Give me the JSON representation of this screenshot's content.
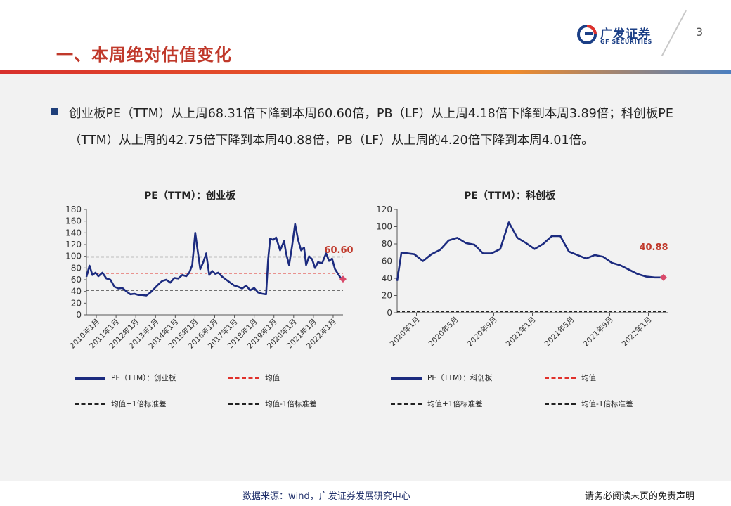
{
  "header": {
    "title": "一、本周绝对估值变化",
    "logo_cn": "广发证券",
    "logo_en": "GF SECURITIES",
    "page_number": "3"
  },
  "bullet": {
    "text": "创业板PE（TTM）从上周68.31倍下降到本周60.60倍，PB（LF）从上周4.18倍下降到本周3.89倍；科创板PE（TTM）从上周的42.75倍下降到本周40.88倍，PB（LF）从上周的4.20倍下降到本周4.01倍。"
  },
  "colors": {
    "line": "#1c2b7f",
    "mean": "#e0312b",
    "std": "#222222",
    "marker": "#d94a6a",
    "accent_red": "#c0392b"
  },
  "chart_data": [
    {
      "type": "line",
      "title": "PE（TTM）：创业板",
      "ylim": [
        0,
        180
      ],
      "yticks": [
        0,
        20,
        40,
        60,
        80,
        100,
        120,
        140,
        160,
        180
      ],
      "xticklabels": [
        "2010年1月",
        "2011年1月",
        "2012年1月",
        "2013年1月",
        "2014年1月",
        "2015年1月",
        "2016年1月",
        "2017年1月",
        "2018年1月",
        "2019年1月",
        "2020年1月",
        "2021年1月",
        "2022年1月"
      ],
      "x_start": 2010.0,
      "x_end": 2022.85,
      "mean": 71,
      "mean_plus_std": 99,
      "mean_minus_std": 42,
      "last_label": "60.60",
      "series": [
        {
          "name": "PE（TTM）：创业板",
          "x": [
            2010.0,
            2010.15,
            2010.3,
            2010.45,
            2010.6,
            2010.8,
            2011.0,
            2011.2,
            2011.4,
            2011.6,
            2011.8,
            2012.0,
            2012.2,
            2012.4,
            2012.6,
            2012.8,
            2013.0,
            2013.2,
            2013.4,
            2013.6,
            2013.8,
            2014.0,
            2014.2,
            2014.4,
            2014.6,
            2014.8,
            2015.0,
            2015.15,
            2015.3,
            2015.45,
            2015.55,
            2015.7,
            2015.85,
            2016.0,
            2016.15,
            2016.3,
            2016.45,
            2016.6,
            2016.8,
            2017.0,
            2017.2,
            2017.4,
            2017.6,
            2017.8,
            2018.0,
            2018.2,
            2018.4,
            2018.6,
            2018.8,
            2019.0,
            2019.1,
            2019.2,
            2019.35,
            2019.5,
            2019.7,
            2019.9,
            2020.0,
            2020.15,
            2020.3,
            2020.45,
            2020.6,
            2020.75,
            2020.9,
            2021.0,
            2021.15,
            2021.3,
            2021.45,
            2021.6,
            2021.8,
            2022.0,
            2022.15,
            2022.3,
            2022.45,
            2022.6,
            2022.75,
            2022.85
          ],
          "y": [
            65,
            84,
            68,
            72,
            66,
            72,
            62,
            60,
            48,
            45,
            46,
            40,
            35,
            36,
            34,
            34,
            33,
            38,
            45,
            52,
            58,
            60,
            55,
            63,
            62,
            68,
            66,
            72,
            85,
            140,
            115,
            78,
            90,
            105,
            68,
            75,
            70,
            72,
            65,
            60,
            55,
            50,
            48,
            45,
            50,
            42,
            46,
            38,
            36,
            35,
            95,
            130,
            128,
            132,
            110,
            126,
            105,
            85,
            118,
            155,
            128,
            110,
            115,
            85,
            100,
            95,
            80,
            90,
            88,
            105,
            92,
            96,
            78,
            70,
            62,
            61
          ]
        }
      ]
    },
    {
      "type": "line",
      "title": "PE（TTM）：科创板",
      "ylim": [
        0,
        120
      ],
      "yticks": [
        0,
        20,
        40,
        60,
        80,
        100,
        120
      ],
      "xticklabels": [
        "2020年1月",
        "2020年5月",
        "2020年9月",
        "2021年1月",
        "2021年5月",
        "2021年9月",
        "2022年1月"
      ],
      "x_start": 0,
      "x_end": 31.5,
      "last_label": "40.88",
      "series": [
        {
          "name": "PE（TTM）：科创板",
          "x": [
            0,
            0.5,
            2,
            3,
            4,
            5,
            6,
            7,
            8,
            9,
            10,
            11,
            12,
            13,
            14,
            15,
            16,
            17,
            18,
            19,
            20,
            21,
            22,
            23,
            24,
            25,
            26,
            27,
            28,
            29,
            30,
            31
          ],
          "y": [
            37,
            70,
            68,
            60,
            68,
            73,
            84,
            87,
            81,
            79,
            69,
            69,
            74,
            105,
            87,
            81,
            74,
            80,
            89,
            89,
            71,
            67,
            63,
            67,
            65,
            58,
            55,
            50,
            45,
            42,
            41,
            41
          ]
        }
      ]
    }
  ],
  "legend": {
    "item1": "PE（TTM）：创业板",
    "item1b": "PE（TTM）：科创板",
    "mean": "均值",
    "plus": "均值+1倍标准差",
    "minus": "均值-1倍标准差"
  },
  "footer": {
    "source": "数据来源：wind，广发证券发展研究中心",
    "disclaimer": "请务必阅读末页的免责声明"
  }
}
